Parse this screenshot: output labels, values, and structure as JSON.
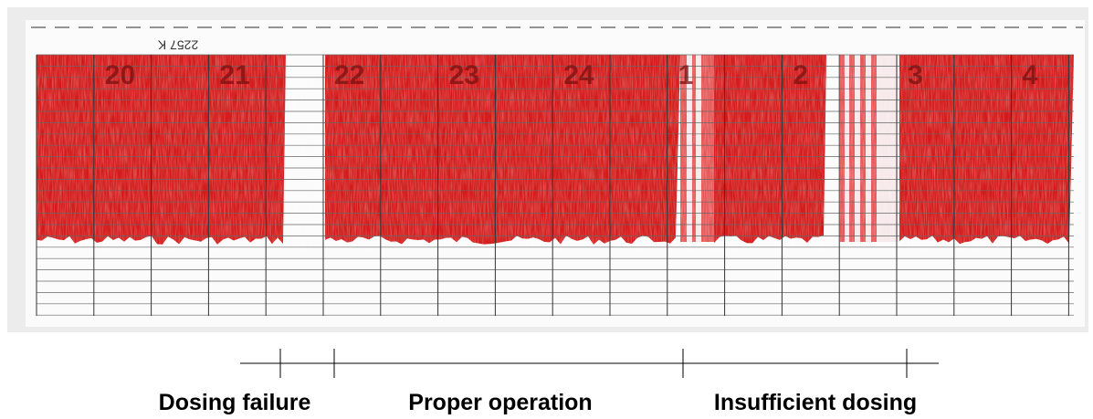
{
  "paper": {
    "serial": "2257 K",
    "hours": [
      "20",
      "21",
      "22",
      "23",
      "24",
      "1",
      "2",
      "3",
      "4"
    ]
  },
  "annotations": [
    {
      "label": "Dosing failure"
    },
    {
      "label": "Proper operation"
    },
    {
      "label": "Insufficient dosing"
    }
  ]
}
